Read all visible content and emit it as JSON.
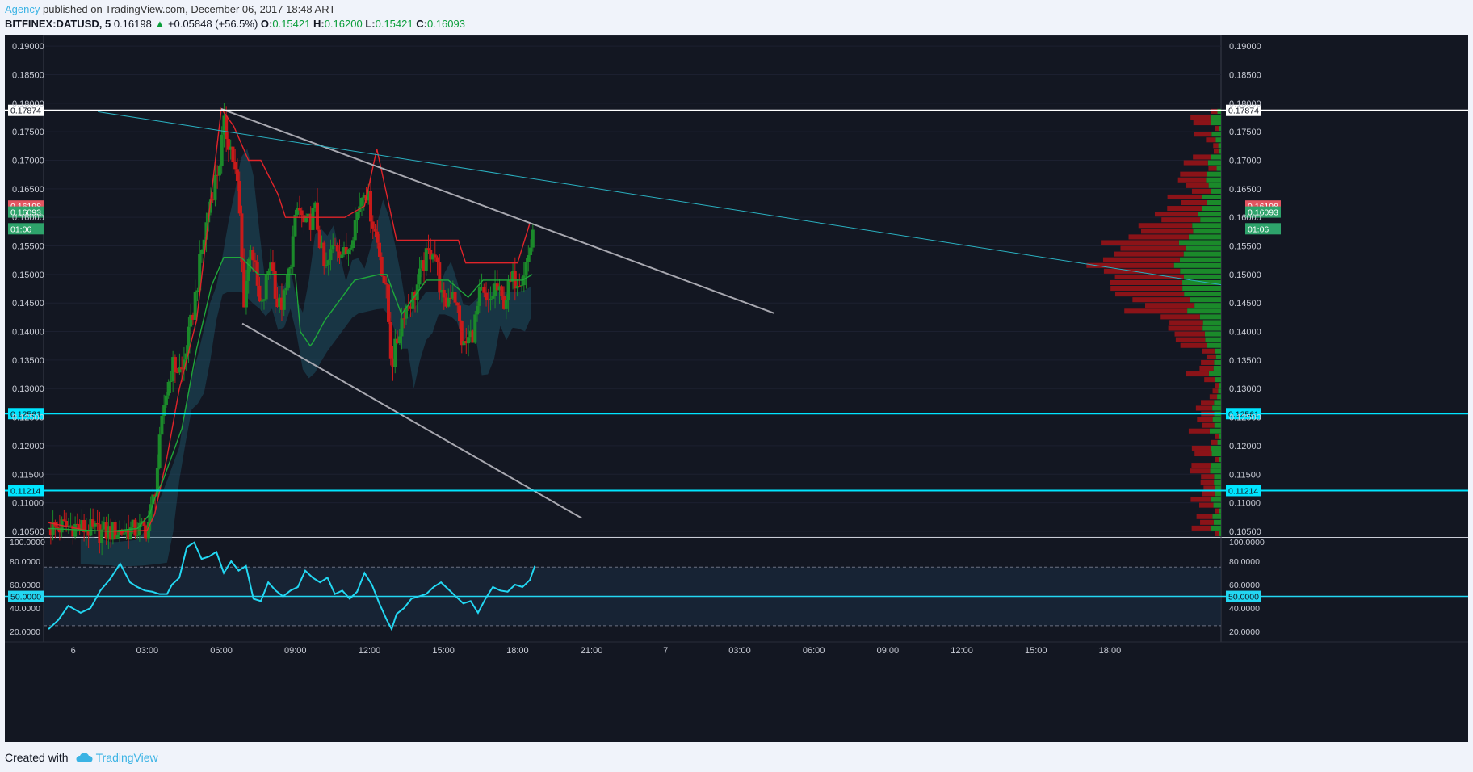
{
  "header": {
    "publisher": "Agency",
    "published_text": "published on TradingView.com, December 06, 2017 18:48 ART",
    "symbol": "BITFINEX:DATUSD, 5",
    "last": "0.16198",
    "change": "+0.05848 (+56.5%)",
    "open_label": "O:",
    "open": "0.15421",
    "high_label": "H:",
    "high": "0.16200",
    "low_label": "L:",
    "low": "0.15421",
    "close_label": "C:",
    "close": "0.16093"
  },
  "footer": {
    "created_with": "Created with",
    "brand": "TradingView"
  },
  "colors": {
    "background": "#131722",
    "up": "#26a69a",
    "candle_up": "#1b8a2a",
    "candle_down": "#c81a1a",
    "level_white": "#ffffff",
    "level_cyan": "#00e5ff",
    "trend_gray": "#a8a8b0",
    "trend_teal": "#2ab0c0",
    "kijun": "#e0242a",
    "tenkan": "#1fa83a",
    "rsi": "#23d7f2"
  },
  "chart_data": [
    {
      "type": "line",
      "subtype": "candlestick",
      "x_ticks": [
        "6",
        "03:00",
        "06:00",
        "09:00",
        "12:00",
        "15:00",
        "18:00",
        "21:00",
        "7",
        "03:00",
        "06:00",
        "09:00",
        "12:00",
        "15:00",
        "18:00"
      ],
      "y_ticks": [
        "0.19000",
        "0.18500",
        "0.18000",
        "0.17500",
        "0.17000",
        "0.16500",
        "0.16000",
        "0.15500",
        "0.15000",
        "0.14500",
        "0.14000",
        "0.13500",
        "0.13000",
        "0.12500",
        "0.12000",
        "0.11500",
        "0.11000",
        "0.10500"
      ],
      "ylim": [
        0.104,
        0.192
      ],
      "hours_range": [
        -1.2,
        46.5
      ],
      "levels": [
        {
          "value": 0.17874,
          "label": "0.17874",
          "color": "#ffffff"
        },
        {
          "value": 0.12561,
          "label": "0.12561",
          "color": "#00e5ff"
        },
        {
          "value": 0.11214,
          "label": "0.11214",
          "color": "#00e5ff"
        }
      ],
      "price_badges": [
        {
          "value": 0.16198,
          "label": "0.16198",
          "color": "#e35561"
        },
        {
          "value": 0.16093,
          "label": "0.16093",
          "color": "#2ea36b"
        },
        {
          "value": 0.158,
          "label": "01:06",
          "color": "#2ea36b"
        }
      ],
      "trendlines": [
        {
          "name": "upper-wedge",
          "color": "#a8a8b0",
          "points": [
            [
              6.0,
              0.179
            ],
            [
              28.4,
              0.1432
            ]
          ]
        },
        {
          "name": "lower-wedge",
          "color": "#a8a8b0",
          "points": [
            [
              6.85,
              0.1414
            ],
            [
              20.6,
              0.1073
            ]
          ]
        },
        {
          "name": "long-resistance",
          "color": "#2ab0c0",
          "points": [
            [
              1.0,
              0.1785
            ],
            [
              46.5,
              0.1482
            ]
          ]
        }
      ],
      "series": [
        {
          "name": "price",
          "x": [
            -1.0,
            0.0,
            1.0,
            2.0,
            2.5,
            3.0,
            3.3,
            3.7,
            4.0,
            4.4,
            4.8,
            5.2,
            5.6,
            5.9,
            6.1,
            6.4,
            6.7,
            6.9,
            7.2,
            7.6,
            8.0,
            8.3,
            8.6,
            8.9,
            9.1,
            9.4,
            9.8,
            10.2,
            10.6,
            11.0,
            11.4,
            11.8,
            12.1,
            12.4,
            12.7,
            12.9,
            13.1,
            13.4,
            13.8,
            14.2,
            14.6,
            15.0,
            15.4,
            15.8,
            16.2,
            16.5,
            16.8,
            17.1,
            17.4,
            17.8,
            18.2,
            18.5,
            18.7
          ],
          "values": [
            0.1055,
            0.106,
            0.1048,
            0.105,
            0.1052,
            0.1055,
            0.112,
            0.128,
            0.134,
            0.133,
            0.142,
            0.154,
            0.164,
            0.169,
            0.176,
            0.172,
            0.164,
            0.145,
            0.156,
            0.143,
            0.153,
            0.144,
            0.146,
            0.156,
            0.162,
            0.158,
            0.161,
            0.15,
            0.156,
            0.153,
            0.159,
            0.166,
            0.16,
            0.154,
            0.146,
            0.134,
            0.138,
            0.144,
            0.146,
            0.152,
            0.155,
            0.144,
            0.148,
            0.137,
            0.14,
            0.147,
            0.144,
            0.148,
            0.145,
            0.149,
            0.15,
            0.154,
            0.161
          ]
        },
        {
          "name": "kijun",
          "x": [
            -1.0,
            0.5,
            1.5,
            2.4,
            3.0,
            3.3,
            3.8,
            4.3,
            5.0,
            6.0,
            6.5,
            7.1,
            7.6,
            8.3,
            8.6,
            9.4,
            10.2,
            11.0,
            11.8,
            12.3,
            12.5,
            13.1,
            14.6,
            15.6,
            15.9,
            16.7,
            17.2,
            18.0,
            18.5
          ],
          "values": [
            0.1065,
            0.1052,
            0.105,
            0.105,
            0.1052,
            0.108,
            0.118,
            0.13,
            0.142,
            0.179,
            0.176,
            0.17,
            0.17,
            0.164,
            0.16,
            0.16,
            0.16,
            0.16,
            0.162,
            0.172,
            0.168,
            0.156,
            0.156,
            0.156,
            0.152,
            0.152,
            0.152,
            0.152,
            0.159
          ]
        },
        {
          "name": "tenkan",
          "x": [
            -1.0,
            1.5,
            2.6,
            3.1,
            3.4,
            3.6,
            4.4,
            5.0,
            5.6,
            6.1,
            6.8,
            7.5,
            8.0,
            9.0,
            9.2,
            9.6,
            9.7,
            10.2,
            11.4,
            12.4,
            12.7,
            13.3,
            14.3,
            15.2,
            16.0,
            16.6,
            17.3,
            18.2,
            18.6
          ],
          "values": [
            0.1055,
            0.105,
            0.1055,
            0.108,
            0.112,
            0.1135,
            0.123,
            0.137,
            0.148,
            0.153,
            0.153,
            0.15,
            0.15,
            0.15,
            0.14,
            0.1375,
            0.138,
            0.142,
            0.149,
            0.15,
            0.15,
            0.143,
            0.149,
            0.149,
            0.146,
            0.149,
            0.149,
            0.149,
            0.15
          ]
        }
      ]
    },
    {
      "type": "line",
      "name": "rsi",
      "ylim": [
        18,
        100
      ],
      "y_ticks": [
        "100.0000",
        "80.0000",
        "60.0000",
        "40.0000",
        "20.0000"
      ],
      "mid_label": "50.0000",
      "bands": [
        75,
        25
      ],
      "x": [
        -1.0,
        -0.6,
        -0.2,
        0.3,
        0.7,
        1.1,
        1.5,
        1.9,
        2.3,
        2.6,
        2.9,
        3.2,
        3.5,
        3.8,
        4.0,
        4.3,
        4.6,
        4.9,
        5.2,
        5.5,
        5.8,
        6.1,
        6.4,
        6.7,
        7.0,
        7.3,
        7.6,
        7.9,
        8.2,
        8.5,
        8.8,
        9.1,
        9.4,
        9.7,
        10.0,
        10.3,
        10.6,
        10.9,
        11.2,
        11.5,
        11.8,
        12.1,
        12.4,
        12.7,
        12.9,
        13.1,
        13.4,
        13.7,
        14.0,
        14.3,
        14.6,
        14.9,
        15.2,
        15.5,
        15.8,
        16.1,
        16.4,
        16.7,
        17.0,
        17.3,
        17.6,
        17.9,
        18.2,
        18.5,
        18.7
      ],
      "values": [
        22,
        30,
        42,
        36,
        40,
        55,
        65,
        78,
        62,
        58,
        55,
        54,
        52,
        52,
        60,
        66,
        92,
        96,
        82,
        84,
        88,
        70,
        80,
        72,
        76,
        48,
        46,
        62,
        55,
        50,
        55,
        58,
        72,
        66,
        62,
        66,
        52,
        55,
        48,
        54,
        70,
        60,
        44,
        30,
        22,
        35,
        40,
        48,
        50,
        52,
        58,
        62,
        56,
        50,
        44,
        46,
        36,
        48,
        58,
        55,
        54,
        60,
        58,
        64,
        76
      ]
    }
  ]
}
